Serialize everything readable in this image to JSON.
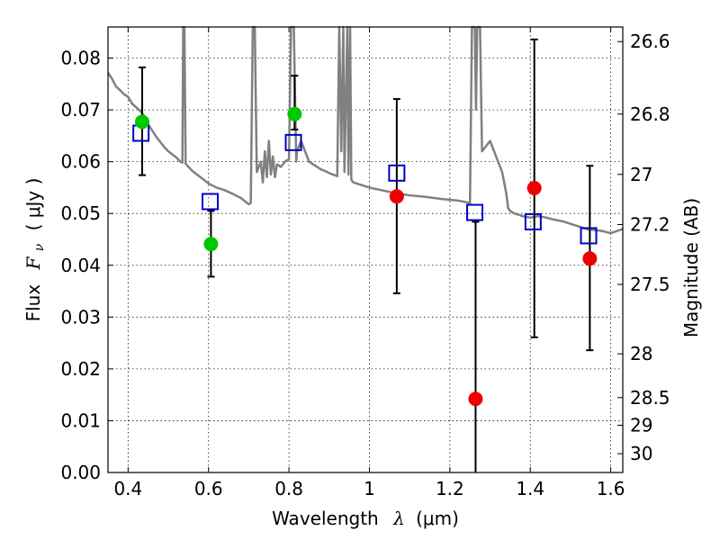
{
  "chart_data": {
    "type": "scatter",
    "title": "",
    "xlabel": "Wavelength",
    "xlabel_symbol": "λ",
    "xlabel_unit": "(μm)",
    "ylabel": "Flux",
    "ylabel_symbol": "F",
    "ylabel_sub": "ν",
    "ylabel_unit": "( μJy )",
    "y2label": "Magnitude (AB)",
    "xlim": [
      0.35,
      1.63
    ],
    "ylim": [
      0.0,
      0.086
    ],
    "xticks": [
      0.4,
      0.6,
      0.8,
      1.0,
      1.2,
      1.4,
      1.6
    ],
    "xtick_labels": [
      "0.4",
      "0.6",
      "0.8",
      "1",
      "1.2",
      "1.4",
      "1.6"
    ],
    "yticks": [
      0.0,
      0.01,
      0.02,
      0.03,
      0.04,
      0.05,
      0.06,
      0.07,
      0.08
    ],
    "ytick_labels": [
      "0.00",
      "0.01",
      "0.02",
      "0.03",
      "0.04",
      "0.05",
      "0.06",
      "0.07",
      "0.08"
    ],
    "y2ticks": [
      26.6,
      26.8,
      27.0,
      27.2,
      27.5,
      28.0,
      28.5,
      29.0,
      30.0
    ],
    "y2tick_labels": [
      "26.6",
      "26.8",
      "27",
      "27.2",
      "27.5",
      "28",
      "28.5",
      "29",
      "30"
    ],
    "grid": true,
    "colors": {
      "model": "#808080",
      "green": "#00c800",
      "red": "#ee0000",
      "box": "#0000cc",
      "error": "#000000"
    },
    "series": [
      {
        "kind": "line",
        "role": "model-sed",
        "points": [
          [
            0.35,
            0.0772
          ],
          [
            0.36,
            0.076
          ],
          [
            0.37,
            0.0745
          ],
          [
            0.38,
            0.0738
          ],
          [
            0.39,
            0.073
          ],
          [
            0.4,
            0.0725
          ],
          [
            0.41,
            0.0712
          ],
          [
            0.42,
            0.0705
          ],
          [
            0.43,
            0.0698
          ],
          [
            0.44,
            0.0688
          ],
          [
            0.45,
            0.0672
          ],
          [
            0.46,
            0.066
          ],
          [
            0.47,
            0.0648
          ],
          [
            0.48,
            0.0638
          ],
          [
            0.49,
            0.0628
          ],
          [
            0.5,
            0.062
          ],
          [
            0.51,
            0.0614
          ],
          [
            0.52,
            0.0608
          ],
          [
            0.53,
            0.06
          ],
          [
            0.535,
            0.0598
          ],
          [
            0.537,
            0.087
          ],
          [
            0.54,
            0.087
          ],
          [
            0.543,
            0.0596
          ],
          [
            0.55,
            0.059
          ],
          [
            0.56,
            0.0582
          ],
          [
            0.57,
            0.0576
          ],
          [
            0.58,
            0.057
          ],
          [
            0.6,
            0.0558
          ],
          [
            0.62,
            0.055
          ],
          [
            0.64,
            0.0545
          ],
          [
            0.66,
            0.0538
          ],
          [
            0.68,
            0.053
          ],
          [
            0.7,
            0.0518
          ],
          [
            0.705,
            0.052
          ],
          [
            0.71,
            0.087
          ],
          [
            0.715,
            0.087
          ],
          [
            0.72,
            0.058
          ],
          [
            0.73,
            0.06
          ],
          [
            0.735,
            0.056
          ],
          [
            0.74,
            0.062
          ],
          [
            0.745,
            0.057
          ],
          [
            0.75,
            0.064
          ],
          [
            0.755,
            0.0575
          ],
          [
            0.76,
            0.061
          ],
          [
            0.765,
            0.057
          ],
          [
            0.77,
            0.0595
          ],
          [
            0.78,
            0.059
          ],
          [
            0.79,
            0.06
          ],
          [
            0.8,
            0.0605
          ],
          [
            0.805,
            0.087
          ],
          [
            0.812,
            0.087
          ],
          [
            0.818,
            0.06
          ],
          [
            0.82,
            0.062
          ],
          [
            0.83,
            0.064
          ],
          [
            0.84,
            0.062
          ],
          [
            0.85,
            0.06
          ],
          [
            0.86,
            0.0595
          ],
          [
            0.87,
            0.059
          ],
          [
            0.88,
            0.0585
          ],
          [
            0.89,
            0.0582
          ],
          [
            0.9,
            0.0578
          ],
          [
            0.91,
            0.0575
          ],
          [
            0.92,
            0.0572
          ],
          [
            0.925,
            0.087
          ],
          [
            0.93,
            0.062
          ],
          [
            0.935,
            0.087
          ],
          [
            0.938,
            0.058
          ],
          [
            0.945,
            0.087
          ],
          [
            0.948,
            0.0575
          ],
          [
            0.952,
            0.087
          ],
          [
            0.955,
            0.0565
          ],
          [
            0.96,
            0.056
          ],
          [
            0.98,
            0.0555
          ],
          [
            1.0,
            0.055
          ],
          [
            1.03,
            0.0545
          ],
          [
            1.06,
            0.054
          ],
          [
            1.1,
            0.0535
          ],
          [
            1.14,
            0.0532
          ],
          [
            1.18,
            0.0528
          ],
          [
            1.22,
            0.0525
          ],
          [
            1.24,
            0.0522
          ],
          [
            1.25,
            0.052
          ],
          [
            1.255,
            0.087
          ],
          [
            1.262,
            0.087
          ],
          [
            1.265,
            0.07
          ],
          [
            1.268,
            0.087
          ],
          [
            1.275,
            0.087
          ],
          [
            1.28,
            0.062
          ],
          [
            1.3,
            0.064
          ],
          [
            1.32,
            0.06
          ],
          [
            1.33,
            0.058
          ],
          [
            1.34,
            0.054
          ],
          [
            1.345,
            0.051
          ],
          [
            1.35,
            0.0505
          ],
          [
            1.36,
            0.05
          ],
          [
            1.37,
            0.0498
          ],
          [
            1.38,
            0.0495
          ],
          [
            1.4,
            0.0492
          ],
          [
            1.42,
            0.0495
          ],
          [
            1.44,
            0.0492
          ],
          [
            1.46,
            0.0488
          ],
          [
            1.48,
            0.0485
          ],
          [
            1.5,
            0.048
          ],
          [
            1.52,
            0.0475
          ],
          [
            1.54,
            0.047
          ],
          [
            1.56,
            0.0468
          ],
          [
            1.58,
            0.0466
          ],
          [
            1.6,
            0.0462
          ],
          [
            1.63,
            0.047
          ]
        ]
      },
      {
        "kind": "points",
        "role": "model-boxes",
        "points": [
          [
            0.432,
            0.0655
          ],
          [
            0.604,
            0.0523
          ],
          [
            0.811,
            0.0637
          ],
          [
            1.068,
            0.0578
          ],
          [
            1.262,
            0.0502
          ],
          [
            1.407,
            0.0484
          ],
          [
            1.545,
            0.0457
          ]
        ]
      },
      {
        "kind": "points",
        "role": "green-photometry",
        "points": [
          [
            0.435,
            0.0677
          ],
          [
            0.606,
            0.0441
          ],
          [
            0.814,
            0.0692
          ]
        ]
      },
      {
        "kind": "points",
        "role": "red-photometry",
        "points": [
          [
            1.068,
            0.0533
          ],
          [
            1.264,
            0.0142
          ],
          [
            1.41,
            0.0549
          ],
          [
            1.548,
            0.0413
          ]
        ]
      },
      {
        "kind": "errorbars",
        "role": "uncertainties",
        "bars": [
          [
            0.435,
            0.0574,
            0.0782
          ],
          [
            0.606,
            0.0378,
            0.0505
          ],
          [
            0.814,
            0.0662,
            0.0766
          ],
          [
            1.068,
            0.0346,
            0.0721
          ],
          [
            1.264,
            0.0,
            0.0484
          ],
          [
            1.41,
            0.0261,
            0.0836
          ],
          [
            1.548,
            0.0236,
            0.0592
          ]
        ]
      }
    ]
  }
}
